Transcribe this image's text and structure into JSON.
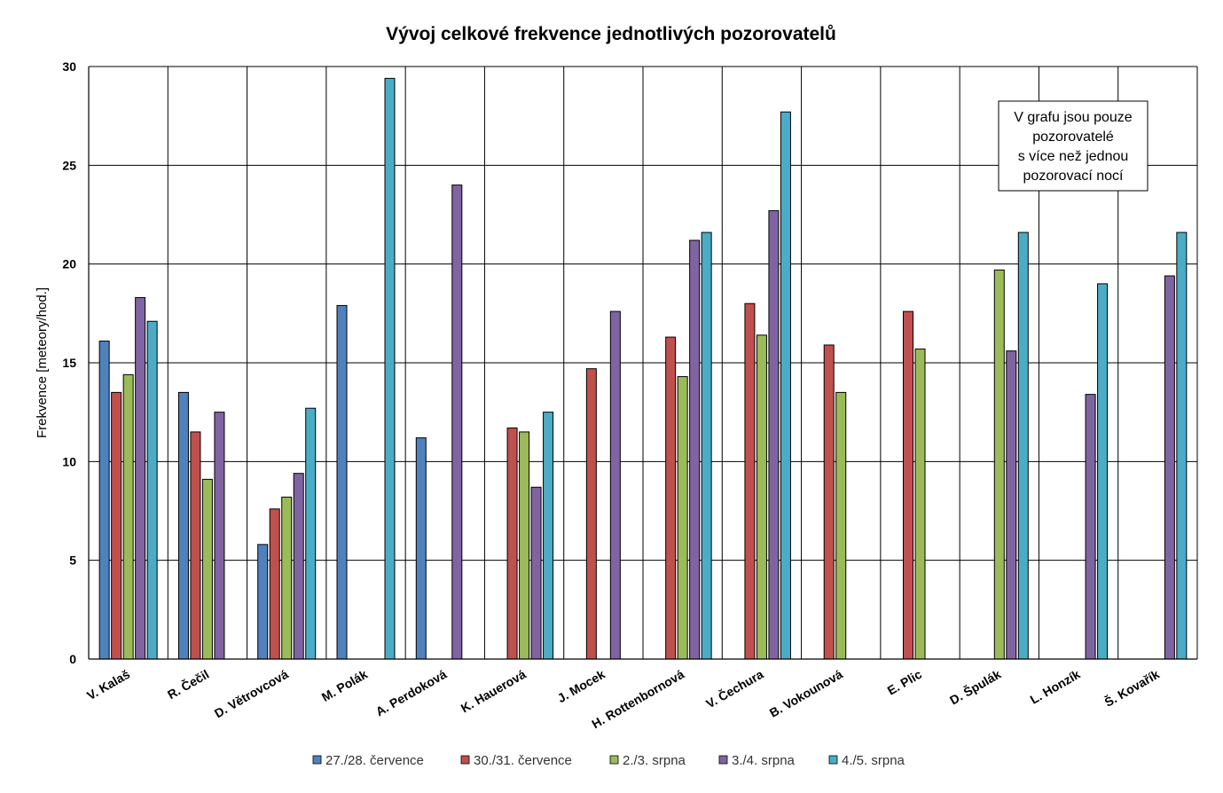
{
  "chart_data": {
    "type": "bar",
    "title": "Vývoj celkové frekvence jednotlivých pozorovatelů",
    "ylabel": "Frekvence [meteory/hod.]",
    "xlabel": "",
    "ylim": [
      0,
      30
    ],
    "yticks": [
      "0",
      "5",
      "10",
      "15",
      "20",
      "25",
      "30"
    ],
    "grid": true,
    "legend_position": "bottom",
    "categories": [
      "V. Kalaš",
      "R. Čečil",
      "D. Větrovcová",
      "M. Polák",
      "A. Perdoková",
      "K. Hauerová",
      "J. Mocek",
      "H. Rottenbornová",
      "V. Čechura",
      "B. Vokounová",
      "E. Plic",
      "D. Špulák",
      "L. Honzík",
      "Š. Kovařík"
    ],
    "series": [
      {
        "name": "27./28. července",
        "color": "#4F81BD",
        "values": [
          16.1,
          13.5,
          5.8,
          17.9,
          11.2,
          null,
          null,
          null,
          null,
          null,
          null,
          null,
          null,
          null
        ]
      },
      {
        "name": "30./31. července",
        "color": "#C0504D",
        "values": [
          13.5,
          11.5,
          7.6,
          null,
          null,
          11.7,
          14.7,
          16.3,
          18.0,
          15.9,
          17.6,
          null,
          null,
          null
        ]
      },
      {
        "name": "2./3. srpna",
        "color": "#9BBB59",
        "values": [
          14.4,
          9.1,
          8.2,
          null,
          null,
          11.5,
          null,
          14.3,
          16.4,
          13.5,
          15.7,
          19.7,
          null,
          null
        ]
      },
      {
        "name": "3./4. srpna",
        "color": "#8064A2",
        "values": [
          18.3,
          12.5,
          9.4,
          null,
          24.0,
          8.7,
          17.6,
          21.2,
          22.7,
          null,
          null,
          15.6,
          13.4,
          19.4
        ]
      },
      {
        "name": "4./5. srpna",
        "color": "#4BACC6",
        "values": [
          17.1,
          null,
          12.7,
          29.4,
          null,
          12.5,
          null,
          21.6,
          27.7,
          null,
          null,
          21.6,
          19.0,
          21.6
        ]
      }
    ],
    "annotation": [
      "V grafu jsou pouze",
      "pozorovatelé",
      "s více než jednou",
      "pozorovací nocí"
    ]
  }
}
